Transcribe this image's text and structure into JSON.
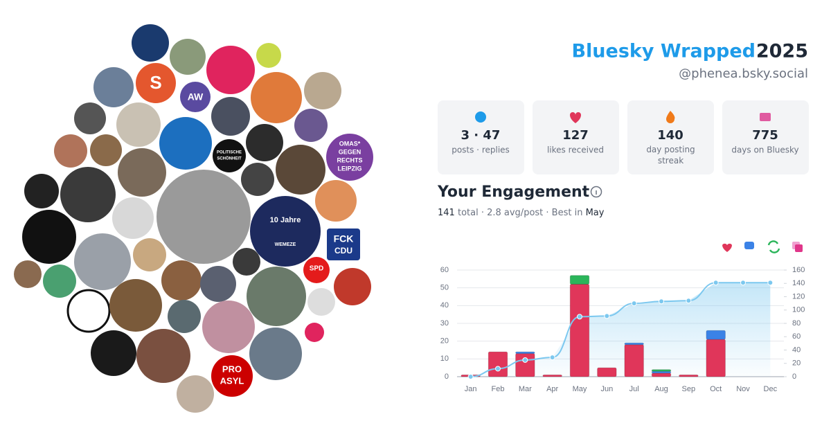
{
  "header": {
    "title": "Bluesky Wrapped",
    "year": "2025",
    "handle": "@phenea.bsky.social"
  },
  "stats": [
    {
      "value": "3 · 47",
      "label": "posts · replies"
    },
    {
      "value": "127",
      "label": "likes received"
    },
    {
      "value": "140",
      "label": "day posting streak"
    },
    {
      "value": "775",
      "label": "days on Bluesky"
    }
  ],
  "engagement": {
    "title": "Your Engagement",
    "total": "141",
    "summary": "total · 2.8 avg/post · Best in",
    "best": "May"
  },
  "avatar_labels": [
    "10 Jahre",
    "WEMEZE",
    "FCK",
    "CDU",
    "PRO",
    "ASYL",
    "SPD",
    "OMAS*",
    "GEGEN",
    "RECHTS",
    "LEIPZIG",
    "POLITISCHE",
    "SCHÖNHEIT",
    "AW",
    "S"
  ],
  "chart_data": {
    "type": "bar",
    "categories": [
      "Jan",
      "Feb",
      "Mar",
      "Apr",
      "May",
      "Jun",
      "Jul",
      "Aug",
      "Sep",
      "Oct",
      "Nov",
      "Dec"
    ],
    "series": [
      {
        "color": "#e0365a",
        "values": [
          1,
          14,
          13,
          1,
          52,
          5,
          18,
          2,
          1,
          21,
          0,
          0
        ]
      },
      {
        "color": "#3b82e6",
        "values": [
          0,
          0,
          1,
          0,
          0,
          0,
          1,
          1,
          0,
          5,
          0,
          0
        ]
      },
      {
        "color": "#2bb55a",
        "values": [
          0,
          0,
          0,
          0,
          5,
          0,
          0,
          1,
          0,
          0,
          0,
          0
        ]
      },
      {
        "color": "#7cc8ef",
        "axis": "y2",
        "type": "line",
        "values": [
          0,
          12,
          25,
          29,
          90,
          91,
          110,
          113,
          114,
          141,
          141,
          141
        ]
      }
    ],
    "ylim": [
      0,
      60
    ],
    "yticks": [
      0,
      10,
      20,
      30,
      40,
      50,
      60
    ],
    "y2lim": [
      0,
      160
    ],
    "y2ticks": [
      0,
      20,
      40,
      60,
      80,
      100,
      120,
      140,
      160
    ],
    "grid": true
  }
}
